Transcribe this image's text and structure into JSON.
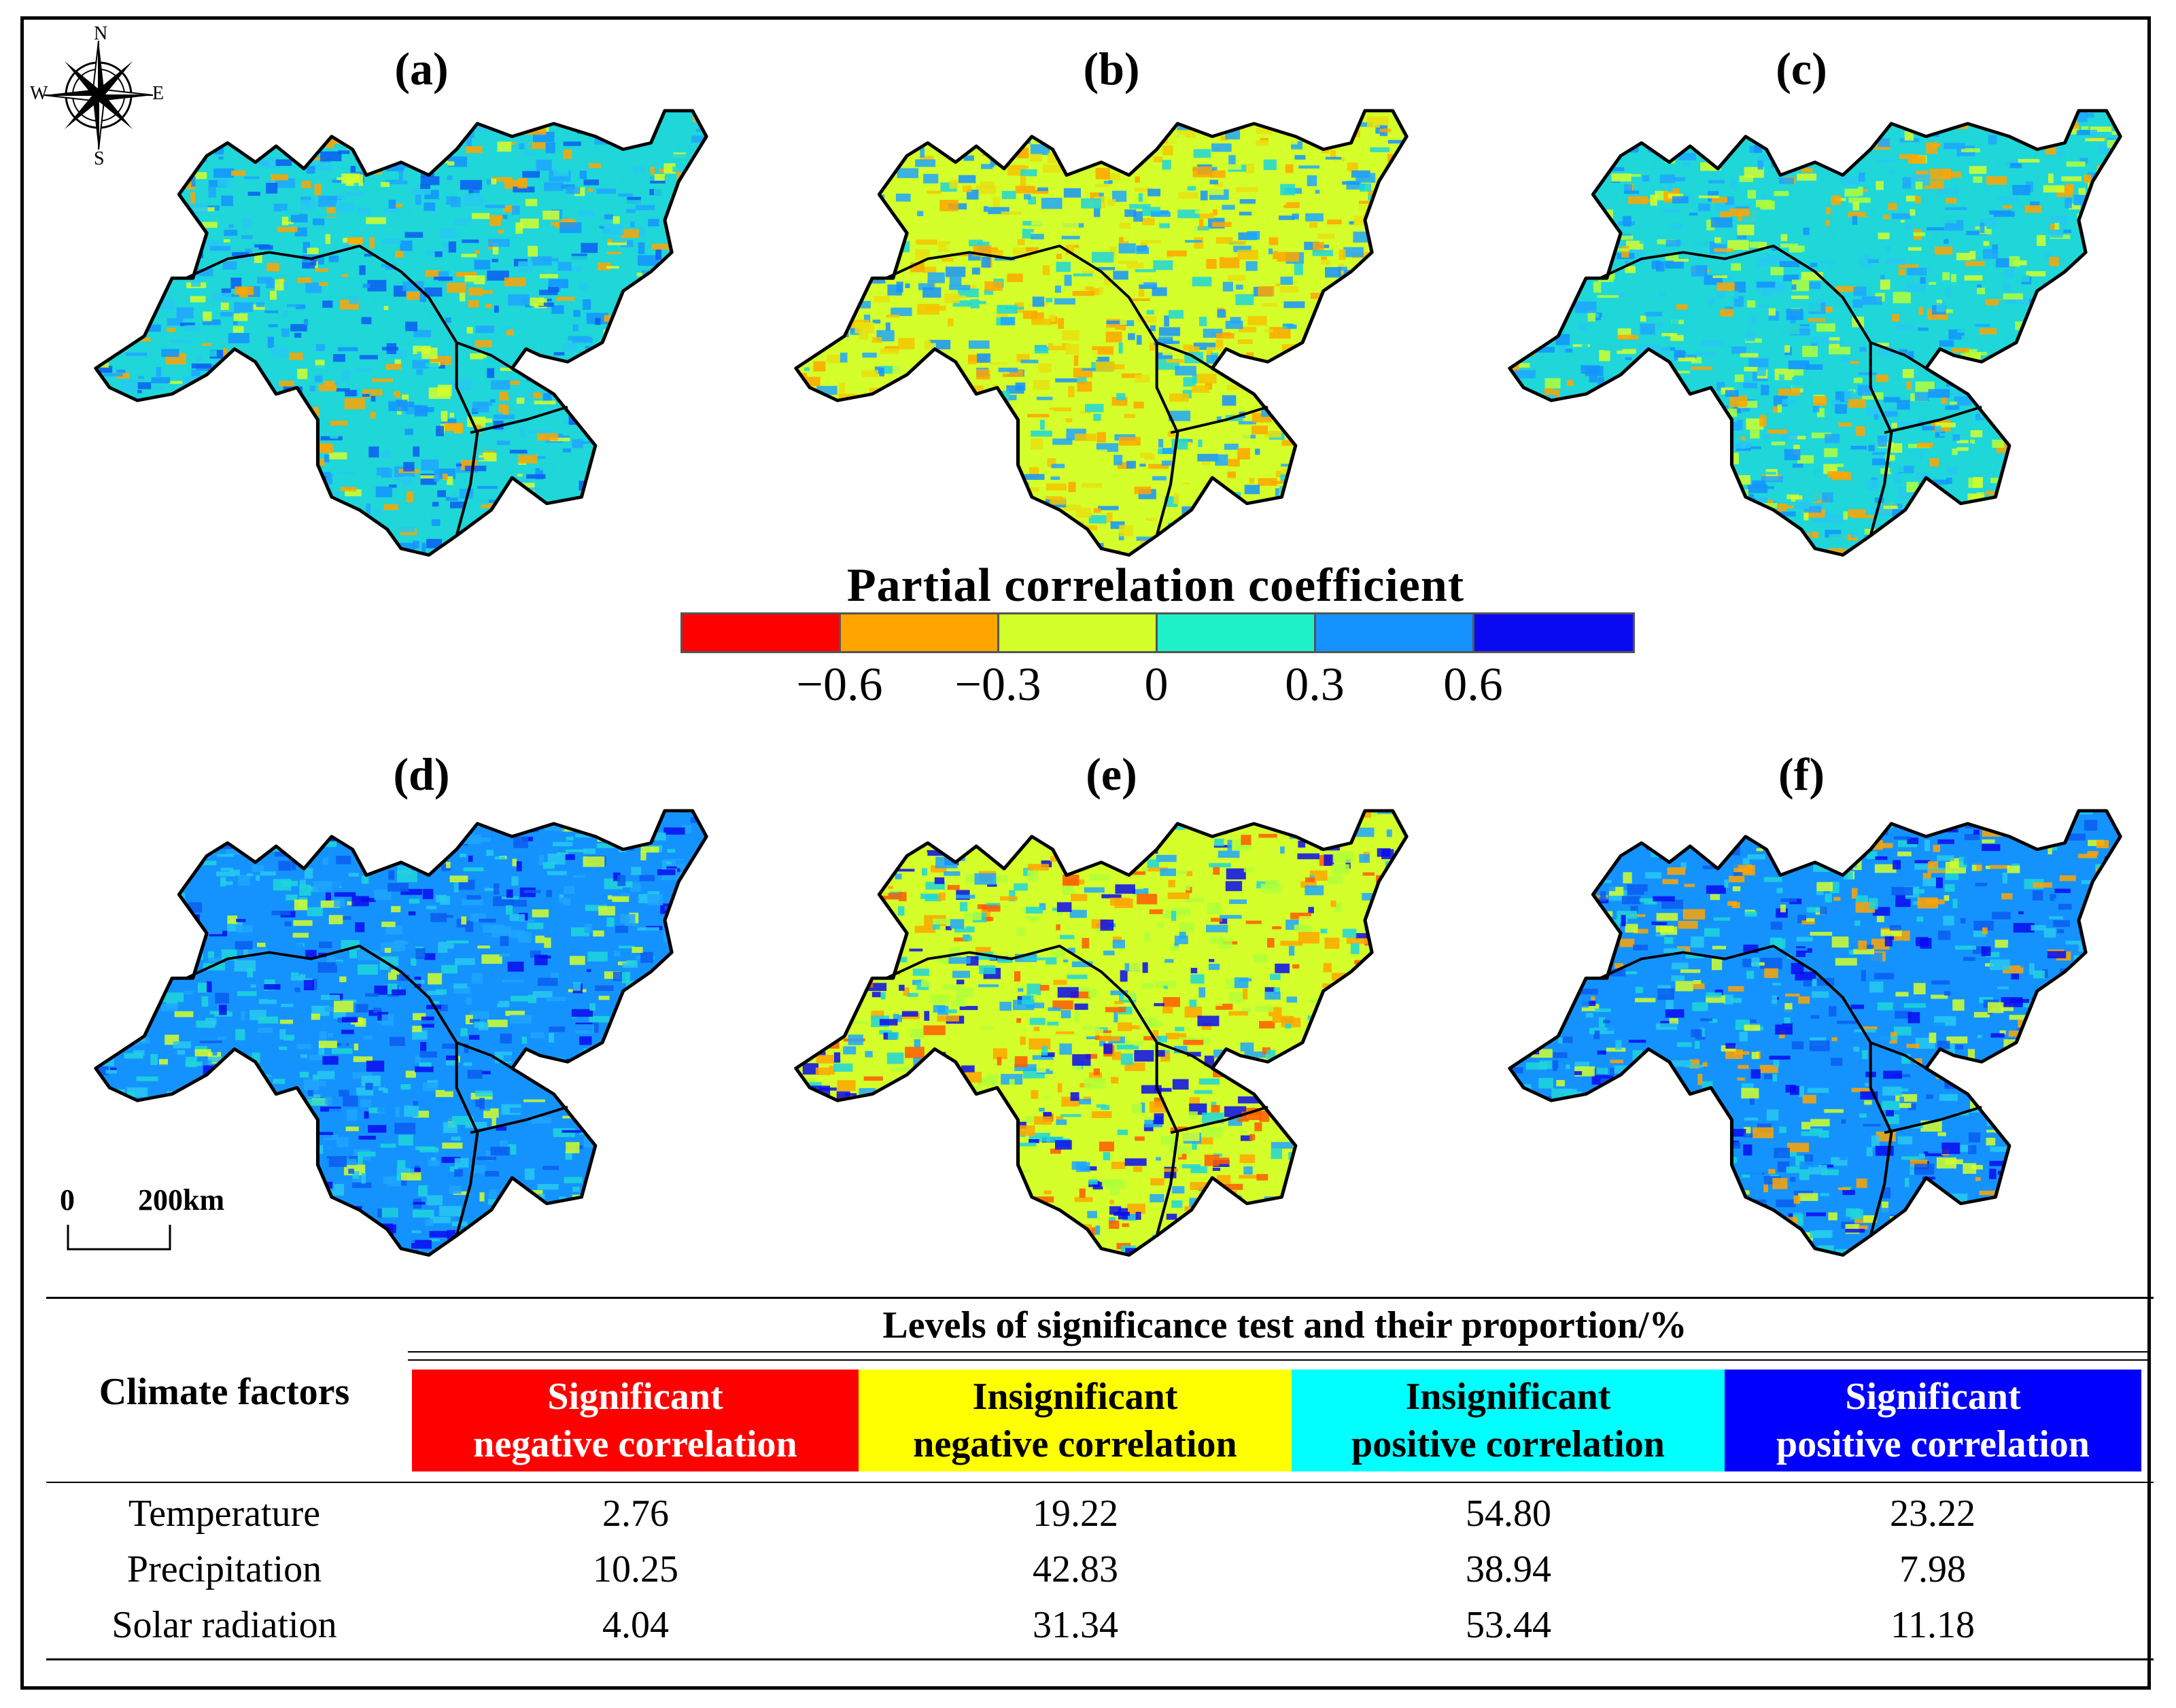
{
  "panels": [
    "(a)",
    "(b)",
    "(c)",
    "(d)",
    "(e)",
    "(f)"
  ],
  "compass": {
    "n": "N",
    "s": "S",
    "e": "E",
    "w": "W"
  },
  "scale_bar": {
    "start": "0",
    "end": "200km"
  },
  "colorbar": {
    "title": "Partial correlation coefficient",
    "colors": [
      "#ff0000",
      "#ffa500",
      "#d4ff2a",
      "#1ff2c8",
      "#1493ff",
      "#0a0af0"
    ],
    "ticks": [
      "−0.6",
      "−0.3",
      "0",
      "0.3",
      "0.6"
    ]
  },
  "table": {
    "title": "Levels of significance test and their proportion/%",
    "row_header": "Climate factors",
    "columns": [
      {
        "line1": "Significant",
        "line2": "negative correlation",
        "bg": "#ff0000",
        "fg": "#ffffff"
      },
      {
        "line1": "Insignificant",
        "line2": "negative correlation",
        "bg": "#ffff00",
        "fg": "#000000"
      },
      {
        "line1": "Insignificant",
        "line2": "positive correlation",
        "bg": "#00ffff",
        "fg": "#000000"
      },
      {
        "line1": "Significant",
        "line2": "positive correlation",
        "bg": "#0000ff",
        "fg": "#ffffff"
      }
    ],
    "rows": [
      {
        "name": "Temperature",
        "values": [
          "2.76",
          "19.22",
          "54.80",
          "23.22"
        ]
      },
      {
        "name": "Precipitation",
        "values": [
          "10.25",
          "42.83",
          "38.94",
          "7.98"
        ]
      },
      {
        "name": "Solar radiation",
        "values": [
          "4.04",
          "31.34",
          "53.44",
          "11.18"
        ]
      }
    ]
  }
}
